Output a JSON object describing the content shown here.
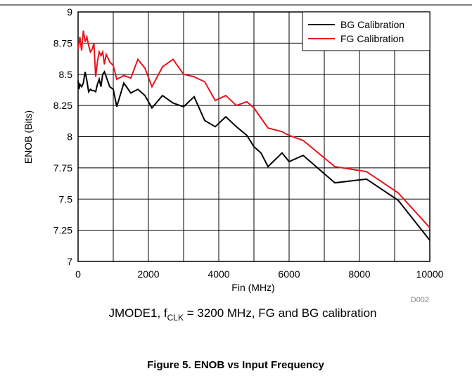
{
  "chart_data": {
    "type": "line",
    "xlabel": "Fin (MHz)",
    "ylabel": "ENOB (Bits)",
    "note": "D002",
    "caption": [
      "JMODE1, f",
      "CLK",
      " = 3200 MHz, FG and BG calibration"
    ],
    "title": "Figure 5. ENOB vs Input Frequency",
    "x": [
      0,
      25,
      50,
      100,
      150,
      200,
      250,
      300,
      350,
      400,
      450,
      500,
      550,
      600,
      650,
      700,
      750,
      800,
      900,
      1000,
      1100,
      1300,
      1500,
      1700,
      1900,
      2100,
      2400,
      2700,
      3000,
      3300,
      3600,
      3900,
      4200,
      4500,
      4800,
      5000,
      5200,
      5400,
      5800,
      6000,
      6400,
      7300,
      8200,
      9100,
      10000
    ],
    "series": [
      {
        "name": "BG Calibration",
        "color": "#000000",
        "values": [
          8.45,
          8.38,
          8.42,
          8.4,
          8.43,
          8.52,
          8.45,
          8.36,
          8.38,
          8.37,
          8.37,
          8.36,
          8.42,
          8.46,
          8.4,
          8.5,
          8.52,
          8.48,
          8.4,
          8.38,
          8.24,
          8.43,
          8.35,
          8.38,
          8.33,
          8.23,
          8.33,
          8.27,
          8.24,
          8.32,
          8.13,
          8.08,
          8.16,
          8.08,
          8.01,
          7.92,
          7.87,
          7.76,
          7.87,
          7.8,
          7.85,
          7.63,
          7.66,
          7.49,
          7.17
        ]
      },
      {
        "name": "FG Calibration",
        "color": "#e8141c",
        "values": [
          8.7,
          8.75,
          8.8,
          8.69,
          8.85,
          8.76,
          8.8,
          8.73,
          8.68,
          8.7,
          8.75,
          8.48,
          8.6,
          8.68,
          8.65,
          8.68,
          8.58,
          8.66,
          8.6,
          8.57,
          8.46,
          8.49,
          8.47,
          8.62,
          8.55,
          8.4,
          8.56,
          8.62,
          8.5,
          8.48,
          8.44,
          8.29,
          8.33,
          8.25,
          8.28,
          8.23,
          8.15,
          8.07,
          8.04,
          8.01,
          7.97,
          7.76,
          7.72,
          7.55,
          7.27
        ]
      }
    ],
    "xlim": [
      0,
      10000
    ],
    "xticks": [
      0,
      2000,
      4000,
      6000,
      8000,
      10000
    ],
    "xgrid_step": 1000,
    "ylim": [
      7,
      9
    ],
    "yticks": [
      7,
      7.25,
      7.5,
      7.75,
      8,
      8.25,
      8.5,
      8.75,
      9
    ],
    "grid": true,
    "legend": "upper right"
  }
}
